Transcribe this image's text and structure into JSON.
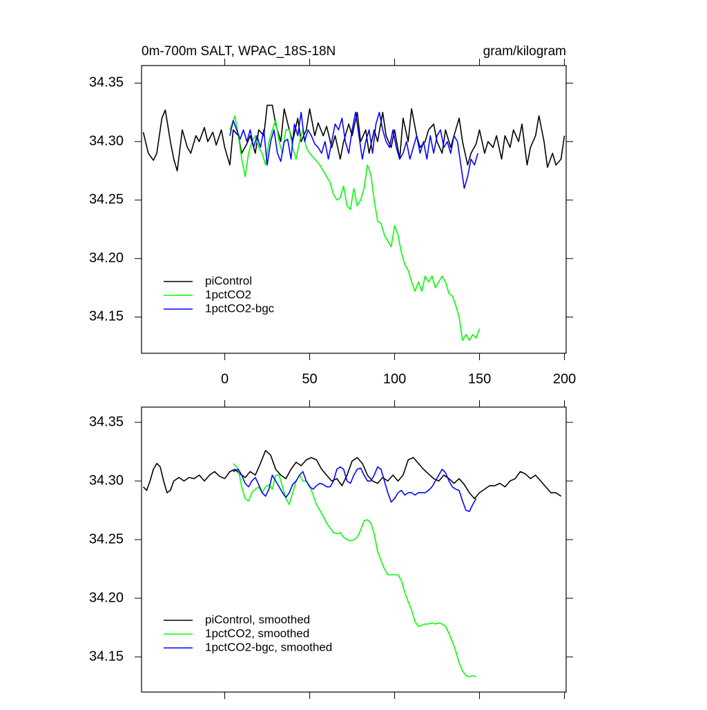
{
  "chart_data": [
    {
      "type": "line",
      "title": "0m-700m SALT, WPAC_18S-18N",
      "right_title": "gram/kilogram",
      "xlim": [
        -49,
        201
      ],
      "xticks": [
        0,
        50,
        100,
        150,
        200
      ],
      "show_xtick_labels": true,
      "ylim": [
        34.119,
        34.365
      ],
      "yticks": [
        34.15,
        {
          "value": 34.2,
          "label": "34.20"
        },
        34.25,
        {
          "value": 34.3,
          "label": "34.30"
        },
        34.35
      ],
      "legend": "lower left",
      "series": [
        {
          "name": "piControl",
          "color": "#000000",
          "x": [
            -48,
            -45,
            -42,
            -40,
            -37,
            -35,
            -32,
            -30,
            -28,
            -25,
            -22,
            -20,
            -17,
            -15,
            -12,
            -10,
            -7,
            -5,
            -2,
            0,
            3,
            5,
            8,
            10,
            13,
            15,
            18,
            20,
            23,
            25,
            28,
            30,
            33,
            35,
            38,
            40,
            43,
            45,
            48,
            50,
            53,
            55,
            58,
            60,
            63,
            65,
            68,
            70,
            73,
            75,
            78,
            80,
            83,
            85,
            88,
            90,
            93,
            95,
            98,
            100,
            103,
            105,
            108,
            110,
            113,
            115,
            118,
            120,
            123,
            125,
            128,
            130,
            133,
            135,
            138,
            140,
            143,
            145,
            148,
            150,
            153,
            155,
            158,
            160,
            163,
            165,
            168,
            170,
            173,
            175,
            178,
            180,
            183,
            185,
            188,
            190,
            193,
            195,
            198,
            200
          ],
          "values": [
            34.308,
            34.29,
            34.284,
            34.29,
            34.32,
            34.327,
            34.3,
            34.285,
            34.275,
            34.31,
            34.295,
            34.29,
            34.305,
            34.3,
            34.312,
            34.3,
            34.308,
            34.297,
            34.31,
            34.295,
            34.28,
            34.31,
            34.305,
            34.29,
            34.298,
            34.305,
            34.29,
            34.31,
            34.305,
            34.331,
            34.331,
            34.315,
            34.3,
            34.328,
            34.31,
            34.3,
            34.32,
            34.3,
            34.31,
            34.328,
            34.305,
            34.316,
            34.305,
            34.313,
            34.295,
            34.305,
            34.285,
            34.3,
            34.315,
            34.305,
            34.325,
            34.3,
            34.31,
            34.29,
            34.31,
            34.3,
            34.325,
            34.305,
            34.295,
            34.31,
            34.285,
            34.32,
            34.3,
            34.328,
            34.305,
            34.295,
            34.3,
            34.31,
            34.315,
            34.3,
            34.29,
            34.31,
            34.295,
            34.305,
            34.32,
            34.3,
            34.28,
            34.29,
            34.298,
            34.31,
            34.29,
            34.3,
            34.295,
            34.305,
            34.285,
            34.305,
            34.295,
            34.31,
            34.3,
            34.315,
            34.28,
            34.295,
            34.305,
            34.322,
            34.3,
            34.278,
            34.29,
            34.28,
            34.285,
            34.305
          ]
        },
        {
          "name": "1pctCO2",
          "color": "#00ff00",
          "x": [
            3,
            6,
            8,
            10,
            12,
            14,
            16,
            18,
            20,
            22,
            24,
            26,
            28,
            30,
            32,
            34,
            36,
            38,
            40,
            42,
            44,
            46,
            48,
            50,
            53,
            56,
            58,
            60,
            62,
            64,
            66,
            68,
            70,
            72,
            74,
            76,
            78,
            80,
            82,
            84,
            86,
            88,
            90,
            92,
            94,
            96,
            98,
            100,
            102,
            104,
            106,
            108,
            110,
            112,
            114,
            116,
            118,
            120,
            122,
            124,
            126,
            128,
            130,
            132,
            134,
            136,
            138,
            140,
            142,
            144,
            146,
            148,
            150
          ],
          "values": [
            34.31,
            34.322,
            34.305,
            34.285,
            34.27,
            34.29,
            34.3,
            34.305,
            34.295,
            34.29,
            34.28,
            34.3,
            34.31,
            34.318,
            34.3,
            34.29,
            34.31,
            34.31,
            34.295,
            34.285,
            34.3,
            34.31,
            34.295,
            34.29,
            34.285,
            34.28,
            34.275,
            34.27,
            34.265,
            34.255,
            34.25,
            34.252,
            34.262,
            34.245,
            34.242,
            34.26,
            34.245,
            34.25,
            34.26,
            34.28,
            34.272,
            34.25,
            34.232,
            34.23,
            34.22,
            34.215,
            34.21,
            34.228,
            34.22,
            34.205,
            34.195,
            34.19,
            34.18,
            34.172,
            34.18,
            34.172,
            34.185,
            34.18,
            34.185,
            34.175,
            34.18,
            34.185,
            34.18,
            34.17,
            34.168,
            34.16,
            34.15,
            34.13,
            34.135,
            34.13,
            34.135,
            34.132,
            34.14
          ]
        },
        {
          "name": "1pctCO2-bgc",
          "color": "#0000ff",
          "x": [
            3,
            5,
            7,
            9,
            11,
            13,
            15,
            17,
            19,
            21,
            23,
            25,
            27,
            29,
            31,
            33,
            35,
            37,
            39,
            41,
            43,
            45,
            47,
            49,
            51,
            53,
            55,
            57,
            59,
            61,
            63,
            65,
            67,
            69,
            71,
            73,
            75,
            77,
            79,
            81,
            83,
            85,
            87,
            89,
            91,
            93,
            95,
            97,
            99,
            101,
            103,
            105,
            107,
            109,
            111,
            113,
            115,
            117,
            119,
            121,
            123,
            125,
            127,
            129,
            131,
            133,
            135,
            137,
            139,
            141,
            143,
            145,
            147,
            149
          ],
          "values": [
            34.305,
            34.318,
            34.31,
            34.302,
            34.31,
            34.3,
            34.31,
            34.295,
            34.305,
            34.295,
            34.31,
            34.28,
            34.3,
            34.31,
            34.29,
            34.283,
            34.3,
            34.302,
            34.285,
            34.315,
            34.305,
            34.325,
            34.3,
            34.31,
            34.305,
            34.298,
            34.295,
            34.29,
            34.3,
            34.285,
            34.3,
            34.315,
            34.31,
            34.32,
            34.3,
            34.29,
            34.31,
            34.325,
            34.305,
            34.285,
            34.3,
            34.31,
            34.29,
            34.315,
            34.325,
            34.31,
            34.3,
            34.295,
            34.31,
            34.295,
            34.285,
            34.29,
            34.3,
            34.285,
            34.295,
            34.305,
            34.29,
            34.3,
            34.285,
            34.305,
            34.29,
            34.305,
            34.31,
            34.295,
            34.3,
            34.29,
            34.305,
            34.3,
            34.28,
            34.26,
            34.27,
            34.285,
            34.28,
            34.29
          ]
        }
      ]
    },
    {
      "type": "line",
      "xlim": [
        -49,
        201
      ],
      "xticks": [
        0,
        50,
        100,
        150,
        200
      ],
      "show_xtick_labels": false,
      "ylim": [
        34.12,
        34.363
      ],
      "yticks": [
        34.15,
        {
          "value": 34.2,
          "label": "34.20"
        },
        34.25,
        {
          "value": 34.3,
          "label": "34.30"
        },
        34.35
      ],
      "legend": "lower left",
      "series": [
        {
          "name": "piControl, smoothed",
          "color": "#000000",
          "x": [
            -48,
            -46,
            -44,
            -42,
            -40,
            -38,
            -36,
            -34,
            -32,
            -30,
            -27,
            -24,
            -21,
            -18,
            -15,
            -12,
            -9,
            -6,
            -3,
            0,
            3,
            6,
            9,
            12,
            15,
            18,
            21,
            24,
            27,
            30,
            33,
            36,
            39,
            42,
            45,
            48,
            51,
            54,
            57,
            60,
            63,
            66,
            69,
            72,
            75,
            78,
            81,
            84,
            87,
            90,
            93,
            96,
            99,
            102,
            105,
            108,
            111,
            114,
            117,
            120,
            123,
            126,
            129,
            132,
            135,
            138,
            141,
            144,
            147,
            150,
            153,
            156,
            159,
            162,
            165,
            168,
            171,
            174,
            177,
            180,
            183,
            186,
            189,
            192,
            195,
            198
          ],
          "values": [
            34.295,
            34.292,
            34.3,
            34.31,
            34.315,
            34.312,
            34.3,
            34.29,
            34.292,
            34.3,
            34.303,
            34.3,
            34.303,
            34.302,
            34.305,
            34.3,
            34.305,
            34.308,
            34.304,
            34.302,
            34.308,
            34.31,
            34.306,
            34.303,
            34.308,
            34.305,
            34.315,
            34.326,
            34.322,
            34.31,
            34.305,
            34.302,
            34.31,
            34.316,
            34.313,
            34.318,
            34.32,
            34.318,
            34.31,
            34.305,
            34.3,
            34.302,
            34.296,
            34.305,
            34.317,
            34.32,
            34.315,
            34.305,
            34.3,
            34.298,
            34.303,
            34.3,
            34.305,
            34.3,
            34.305,
            34.318,
            34.32,
            34.315,
            34.31,
            34.306,
            34.302,
            34.3,
            34.305,
            34.302,
            34.298,
            34.302,
            34.297,
            34.29,
            34.285,
            34.29,
            34.293,
            34.296,
            34.296,
            34.298,
            34.295,
            34.3,
            34.302,
            34.308,
            34.306,
            34.302,
            34.305,
            34.3,
            34.295,
            34.29,
            34.29,
            34.287
          ]
        },
        {
          "name": "1pctCO2, smoothed",
          "color": "#00ff00",
          "x": [
            5,
            8,
            10,
            12,
            14,
            16,
            18,
            20,
            22,
            24,
            26,
            28,
            30,
            32,
            34,
            36,
            38,
            40,
            42,
            44,
            46,
            48,
            50,
            52,
            54,
            56,
            58,
            60,
            62,
            64,
            66,
            68,
            70,
            72,
            74,
            76,
            78,
            80,
            82,
            84,
            86,
            88,
            90,
            92,
            94,
            96,
            98,
            100,
            102,
            104,
            106,
            108,
            110,
            112,
            114,
            116,
            118,
            120,
            122,
            124,
            126,
            128,
            130,
            132,
            134,
            136,
            138,
            140,
            142,
            144,
            146,
            148
          ],
          "values": [
            34.315,
            34.31,
            34.295,
            34.285,
            34.283,
            34.29,
            34.293,
            34.295,
            34.29,
            34.295,
            34.297,
            34.293,
            34.305,
            34.305,
            34.295,
            34.285,
            34.28,
            34.29,
            34.3,
            34.305,
            34.3,
            34.3,
            34.296,
            34.288,
            34.28,
            34.275,
            34.27,
            34.264,
            34.26,
            34.256,
            34.255,
            34.256,
            34.252,
            34.25,
            34.249,
            34.25,
            34.252,
            34.258,
            34.266,
            34.267,
            34.264,
            34.255,
            34.24,
            34.232,
            34.225,
            34.22,
            34.22,
            34.22,
            34.22,
            34.215,
            34.205,
            34.197,
            34.19,
            34.18,
            34.176,
            34.177,
            34.178,
            34.178,
            34.179,
            34.178,
            34.179,
            34.178,
            34.176,
            34.17,
            34.163,
            34.155,
            34.145,
            34.138,
            34.134,
            34.133,
            34.134,
            34.133
          ]
        },
        {
          "name": "1pctCO2-bgc, smoothed",
          "color": "#0000ff",
          "x": [
            5,
            8,
            10,
            12,
            14,
            16,
            18,
            20,
            22,
            24,
            26,
            28,
            30,
            32,
            34,
            36,
            38,
            40,
            42,
            44,
            46,
            48,
            50,
            52,
            54,
            56,
            58,
            60,
            62,
            64,
            66,
            68,
            70,
            72,
            74,
            76,
            78,
            80,
            82,
            84,
            86,
            88,
            90,
            92,
            94,
            96,
            98,
            100,
            102,
            104,
            106,
            108,
            110,
            112,
            114,
            116,
            118,
            120,
            122,
            124,
            126,
            128,
            130,
            132,
            134,
            136,
            138,
            140,
            142,
            144,
            146,
            148
          ],
          "values": [
            34.308,
            34.31,
            34.305,
            34.298,
            34.295,
            34.3,
            34.303,
            34.297,
            34.29,
            34.287,
            34.293,
            34.305,
            34.3,
            34.295,
            34.29,
            34.286,
            34.29,
            34.297,
            34.3,
            34.305,
            34.308,
            34.3,
            34.295,
            34.293,
            34.296,
            34.298,
            34.297,
            34.295,
            34.295,
            34.3,
            34.31,
            34.312,
            34.31,
            34.3,
            34.298,
            34.305,
            34.31,
            34.311,
            34.305,
            34.3,
            34.3,
            34.305,
            34.312,
            34.31,
            34.3,
            34.29,
            34.282,
            34.285,
            34.29,
            34.292,
            34.288,
            34.29,
            34.29,
            34.288,
            34.29,
            34.29,
            34.29,
            34.292,
            34.295,
            34.3,
            34.305,
            34.31,
            34.307,
            34.3,
            34.295,
            34.293,
            34.292,
            34.283,
            34.275,
            34.274,
            34.28,
            34.285
          ]
        }
      ]
    }
  ]
}
